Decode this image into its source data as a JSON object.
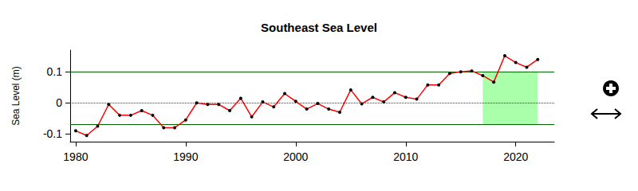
{
  "chart_data": {
    "type": "line",
    "title": "Southeast Sea Level",
    "y_label": "Sea Level (m)",
    "color": "#ff0000",
    "marker": "circle",
    "x": [
      1980,
      1981,
      1982,
      1983,
      1984,
      1985,
      1986,
      1987,
      1988,
      1989,
      1990,
      1991,
      1992,
      1993,
      1994,
      1995,
      1996,
      1997,
      1998,
      1999,
      2000,
      2001,
      2002,
      2003,
      2004,
      2005,
      2006,
      2007,
      2008,
      2009,
      2010,
      2011,
      2012,
      2013,
      2014,
      2015,
      2016,
      2017,
      2018,
      2019,
      2020,
      2021,
      2022
    ],
    "values": [
      -0.09,
      -0.105,
      -0.075,
      -0.005,
      -0.04,
      -0.04,
      -0.025,
      -0.04,
      -0.08,
      -0.08,
      -0.055,
      0.0,
      -0.005,
      -0.005,
      -0.025,
      0.015,
      -0.045,
      0.003,
      -0.013,
      0.03,
      0.005,
      -0.02,
      -0.002,
      -0.02,
      -0.03,
      0.042,
      -0.003,
      0.018,
      0.003,
      0.033,
      0.018,
      0.012,
      0.058,
      0.058,
      0.095,
      0.1,
      0.103,
      0.088,
      0.067,
      0.152,
      0.13,
      0.115,
      0.14
    ],
    "xlim": [
      1979.5,
      2023.5
    ],
    "xticks": [
      1980,
      1990,
      2000,
      2010,
      2020
    ],
    "ylim": [
      -0.125,
      0.17
    ],
    "yticks": [
      -0.1,
      0,
      0.1
    ],
    "grid": false,
    "reference_lines": [
      {
        "value": 0.1,
        "line_style": "solid",
        "color": "#006400"
      },
      {
        "value": -0.07,
        "line_style": "solid",
        "color": "#006400"
      },
      {
        "value": 0,
        "line_style": "dotted",
        "color": "#006400"
      }
    ],
    "highlight": {
      "x": [
        2017,
        2022
      ],
      "y": [
        -0.07,
        0.1
      ],
      "color": "#aaffaa"
    }
  }
}
